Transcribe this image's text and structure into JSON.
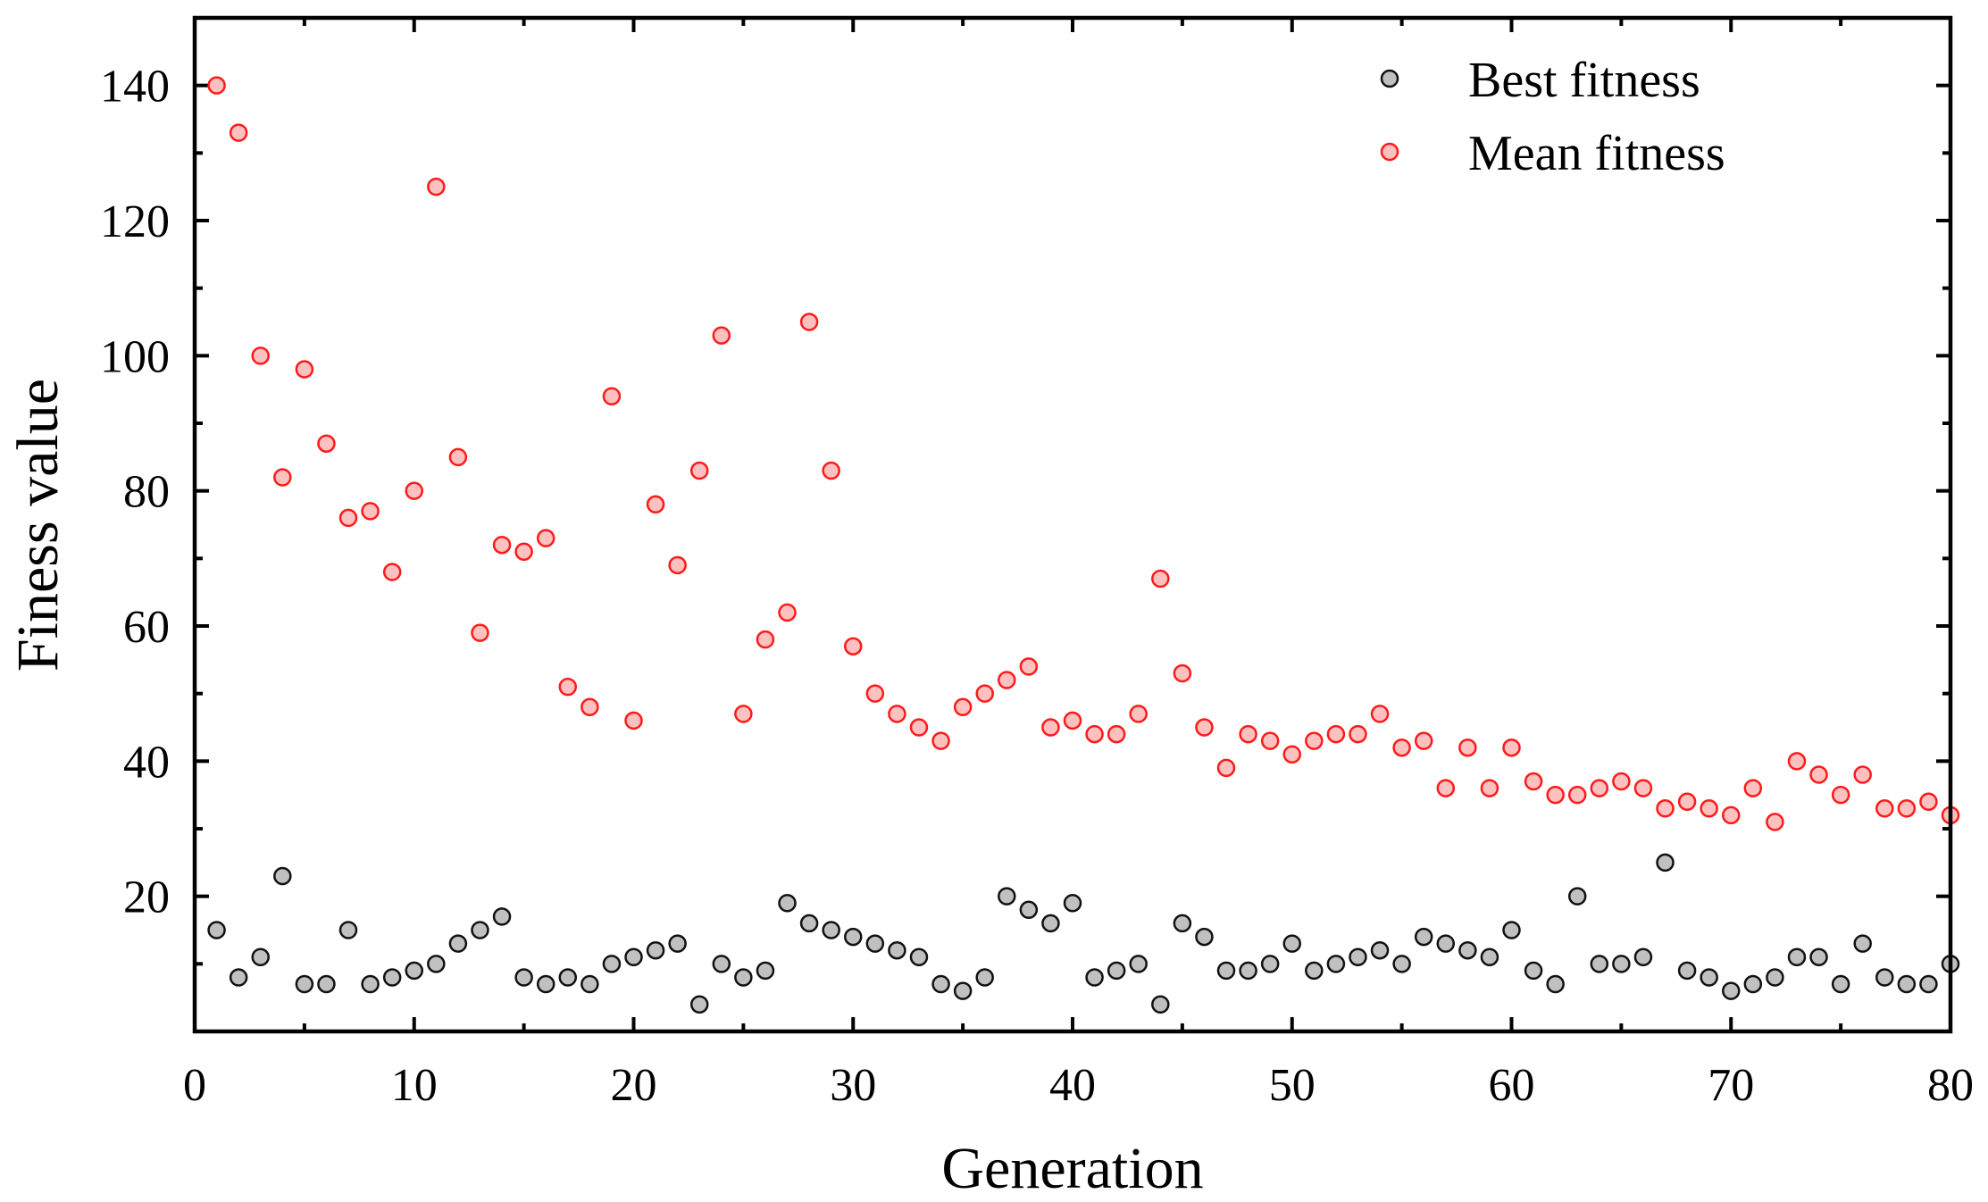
{
  "chart_data": {
    "type": "scatter",
    "title": "",
    "xlabel": "Generation",
    "ylabel": "Finess value",
    "xlim": [
      0,
      80
    ],
    "ylim": [
      0,
      150
    ],
    "xticks": [
      0,
      10,
      20,
      30,
      40,
      50,
      60,
      70,
      80
    ],
    "yticks": [
      20,
      40,
      60,
      80,
      100,
      120,
      140
    ],
    "x_minor_ticks": [
      5,
      15,
      25,
      35,
      45,
      55,
      65,
      75
    ],
    "y_minor_ticks": [
      10,
      30,
      50,
      70,
      90,
      110,
      130,
      150
    ],
    "x_tick_labels": [
      "0",
      "10",
      "20",
      "30",
      "40",
      "50",
      "60",
      "70",
      "80"
    ],
    "y_tick_labels": [
      "20",
      "40",
      "60",
      "80",
      "100",
      "120",
      "140"
    ],
    "grid": false,
    "legend_position": "top-right",
    "x": [
      1,
      2,
      3,
      4,
      5,
      6,
      7,
      8,
      9,
      10,
      11,
      12,
      13,
      14,
      15,
      16,
      17,
      18,
      19,
      20,
      21,
      22,
      23,
      24,
      25,
      26,
      27,
      28,
      29,
      30,
      31,
      32,
      33,
      34,
      35,
      36,
      37,
      38,
      39,
      40,
      41,
      42,
      43,
      44,
      45,
      46,
      47,
      48,
      49,
      50,
      51,
      52,
      53,
      54,
      55,
      56,
      57,
      58,
      59,
      60,
      61,
      62,
      63,
      64,
      65,
      66,
      67,
      68,
      69,
      70,
      71,
      72,
      73,
      74,
      75,
      76,
      77,
      78,
      79,
      80
    ],
    "series": [
      {
        "name": "Best fitness",
        "marker": "circle",
        "fill_color": "#c0c0c0",
        "edge_color": "#111111",
        "values": [
          15,
          8,
          11,
          23,
          7,
          7,
          15,
          7,
          8,
          9,
          10,
          13,
          15,
          17,
          8,
          7,
          8,
          7,
          10,
          11,
          12,
          13,
          4,
          10,
          8,
          9,
          19,
          16,
          15,
          14,
          13,
          12,
          11,
          7,
          6,
          8,
          20,
          18,
          16,
          19,
          8,
          9,
          10,
          4,
          16,
          14,
          9,
          9,
          10,
          13,
          9,
          10,
          11,
          12,
          10,
          14,
          13,
          12,
          11,
          15,
          9,
          7,
          20,
          10,
          10,
          11,
          25,
          9,
          8,
          6,
          7,
          8,
          11,
          11,
          7,
          13,
          8,
          7,
          7,
          10
        ]
      },
      {
        "name": "Mean fitness",
        "marker": "circle",
        "fill_color": "#ffc0c0",
        "edge_color": "#ff1a1a",
        "values": [
          140,
          133,
          100,
          82,
          98,
          87,
          76,
          77,
          68,
          80,
          125,
          85,
          59,
          72,
          71,
          73,
          51,
          48,
          94,
          46,
          78,
          69,
          83,
          103,
          47,
          58,
          62,
          105,
          83,
          57,
          50,
          47,
          45,
          43,
          48,
          50,
          52,
          54,
          45,
          46,
          44,
          44,
          47,
          67,
          53,
          45,
          39,
          44,
          43,
          41,
          43,
          44,
          44,
          47,
          42,
          43,
          36,
          42,
          36,
          42,
          37,
          35,
          35,
          36,
          37,
          36,
          33,
          34,
          33,
          32,
          36,
          31,
          40,
          38,
          35,
          38,
          33,
          33,
          34,
          32
        ]
      }
    ]
  }
}
